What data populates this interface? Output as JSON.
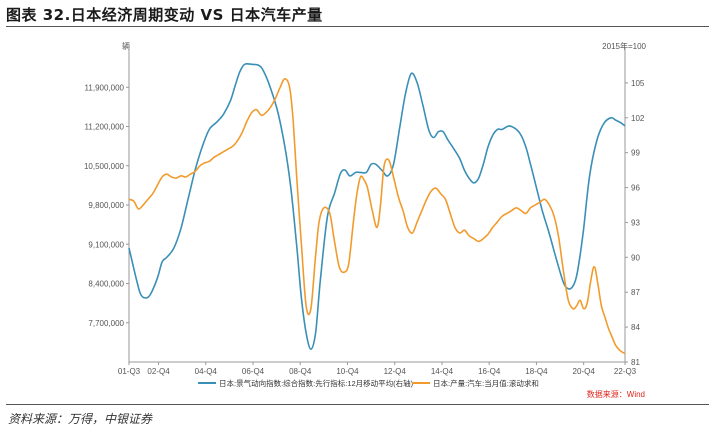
{
  "title": "图表 32.日本经济周期变动 VS 日本汽车产量",
  "source": "资料来源：万得，中银证券",
  "chart_data": {
    "type": "line",
    "left_unit": "辆",
    "right_unit": "2015年=100",
    "note": "数据来源：Wind",
    "left_axis": {
      "ticks": [
        "7,700,000",
        "8,400,000",
        "9,100,000",
        "9,800,000",
        "10,500,000",
        "11,200,000",
        "11,900,000"
      ],
      "ylim": [
        7000000,
        12600000
      ]
    },
    "right_axis": {
      "ticks": [
        "81",
        "84",
        "87",
        "90",
        "93",
        "96",
        "99",
        "102",
        "105"
      ],
      "ylim": [
        81,
        108
      ]
    },
    "x_ticks": [
      "01-Q3",
      "02-Q4",
      "04-Q4",
      "06-Q4",
      "08-Q4",
      "10-Q4",
      "12-Q4",
      "14-Q4",
      "16-Q4",
      "18-Q4",
      "20-Q4",
      "22-Q3"
    ],
    "x_tick_positions": [
      2001.5,
      2002.75,
      2004.75,
      2006.75,
      2008.75,
      2010.75,
      2012.75,
      2014.75,
      2016.75,
      2018.75,
      2020.75,
      2022.5
    ],
    "xlim": [
      2001.5,
      2022.5
    ],
    "series": [
      {
        "name": "日本:景气动向指数:综合指数:先行指标:12月移动平均(右轴)",
        "axis": "right",
        "color": "#3a8fb7",
        "x": [
          2001.5,
          2001.65,
          2001.85,
          2002.0,
          2002.2,
          2002.4,
          2002.7,
          2002.9,
          2003.1,
          2003.4,
          2003.7,
          2004.0,
          2004.3,
          2004.6,
          2004.9,
          2005.2,
          2005.5,
          2005.8,
          2006.0,
          2006.2,
          2006.4,
          2006.7,
          2007.0,
          2007.2,
          2007.5,
          2007.8,
          2008.1,
          2008.35,
          2008.6,
          2008.8,
          2009.0,
          2009.2,
          2009.4,
          2009.6,
          2009.9,
          2010.2,
          2010.45,
          2010.65,
          2010.85,
          2011.1,
          2011.3,
          2011.55,
          2011.75,
          2011.95,
          2012.2,
          2012.45,
          2012.7,
          2012.95,
          2013.2,
          2013.45,
          2013.7,
          2013.95,
          2014.2,
          2014.4,
          2014.6,
          2014.8,
          2015.0,
          2015.2,
          2015.5,
          2015.7,
          2015.9,
          2016.1,
          2016.3,
          2016.5,
          2016.7,
          2016.9,
          2017.1,
          2017.3,
          2017.6,
          2017.9,
          2018.1,
          2018.3,
          2018.5,
          2018.75,
          2019.0,
          2019.3,
          2019.6,
          2019.9,
          2020.1,
          2020.25,
          2020.4,
          2020.55,
          2020.75,
          2021.0,
          2021.3,
          2021.6,
          2021.9,
          2022.1,
          2022.3,
          2022.5
        ],
        "values": [
          90.8,
          89.5,
          87.8,
          86.8,
          86.5,
          86.8,
          88.2,
          89.6,
          90.0,
          90.8,
          92.5,
          95.0,
          97.5,
          99.5,
          101.0,
          101.6,
          102.3,
          103.5,
          104.8,
          106.0,
          106.6,
          106.6,
          106.5,
          106.0,
          104.5,
          102.5,
          99.5,
          96.0,
          91.0,
          86.5,
          83.5,
          82.1,
          83.5,
          88.0,
          93.5,
          95.5,
          97.2,
          97.5,
          97.0,
          97.3,
          97.3,
          97.3,
          98.0,
          98.0,
          97.5,
          97.0,
          98.0,
          101.0,
          104.0,
          105.8,
          105.0,
          103.0,
          100.9,
          100.3,
          100.8,
          100.8,
          100.1,
          99.5,
          98.5,
          97.5,
          96.8,
          96.4,
          96.8,
          98.0,
          99.5,
          100.5,
          101.0,
          101.0,
          101.3,
          101.0,
          100.5,
          99.5,
          98.0,
          96.0,
          94.0,
          92.0,
          89.8,
          87.8,
          87.3,
          87.4,
          88.0,
          89.5,
          92.5,
          97.0,
          100.0,
          101.5,
          102.0,
          101.8,
          101.6,
          101.3
        ]
      },
      {
        "name": "日本:产量:汽车:当月值:滚动求和",
        "axis": "left",
        "color": "#f29b2c",
        "x": [
          2001.5,
          2001.7,
          2001.9,
          2002.1,
          2002.3,
          2002.5,
          2002.7,
          2002.9,
          2003.1,
          2003.3,
          2003.5,
          2003.7,
          2003.9,
          2004.1,
          2004.3,
          2004.5,
          2004.7,
          2004.9,
          2005.1,
          2005.3,
          2005.5,
          2005.7,
          2005.9,
          2006.1,
          2006.3,
          2006.5,
          2006.7,
          2006.9,
          2007.1,
          2007.3,
          2007.5,
          2007.7,
          2007.9,
          2008.1,
          2008.3,
          2008.45,
          2008.6,
          2008.8,
          2009.0,
          2009.2,
          2009.4,
          2009.55,
          2009.75,
          2010.0,
          2010.2,
          2010.4,
          2010.6,
          2010.8,
          2011.0,
          2011.15,
          2011.3,
          2011.45,
          2011.6,
          2011.8,
          2012.0,
          2012.15,
          2012.3,
          2012.5,
          2012.7,
          2012.9,
          2013.1,
          2013.3,
          2013.5,
          2013.7,
          2013.9,
          2014.1,
          2014.3,
          2014.5,
          2014.7,
          2014.9,
          2015.1,
          2015.3,
          2015.5,
          2015.7,
          2015.9,
          2016.1,
          2016.3,
          2016.5,
          2016.7,
          2016.9,
          2017.1,
          2017.3,
          2017.5,
          2017.7,
          2017.9,
          2018.1,
          2018.3,
          2018.5,
          2018.7,
          2018.9,
          2019.1,
          2019.3,
          2019.5,
          2019.7,
          2019.9,
          2020.1,
          2020.3,
          2020.45,
          2020.6,
          2020.75,
          2020.9,
          2021.05,
          2021.2,
          2021.35,
          2021.5,
          2021.65,
          2021.8,
          2021.95,
          2022.1,
          2022.3,
          2022.5
        ],
        "values": [
          9900000,
          9870000,
          9730000,
          9800000,
          9900000,
          10000000,
          10150000,
          10300000,
          10350000,
          10300000,
          10280000,
          10320000,
          10300000,
          10350000,
          10400000,
          10500000,
          10550000,
          10580000,
          10650000,
          10700000,
          10750000,
          10800000,
          10850000,
          10950000,
          11100000,
          11300000,
          11450000,
          11500000,
          11400000,
          11450000,
          11550000,
          11700000,
          11900000,
          12050000,
          11900000,
          11300000,
          10300000,
          9100000,
          8000000,
          7950000,
          8900000,
          9500000,
          9750000,
          9650000,
          9150000,
          8700000,
          8600000,
          8750000,
          9500000,
          10000000,
          10300000,
          10250000,
          10100000,
          9700000,
          9400000,
          9800000,
          10500000,
          10600000,
          10300000,
          9950000,
          9700000,
          9400000,
          9300000,
          9500000,
          9700000,
          9900000,
          10050000,
          10100000,
          10000000,
          9900000,
          9650000,
          9400000,
          9300000,
          9350000,
          9250000,
          9200000,
          9150000,
          9200000,
          9280000,
          9400000,
          9500000,
          9600000,
          9650000,
          9700000,
          9750000,
          9700000,
          9650000,
          9750000,
          9800000,
          9850000,
          9900000,
          9800000,
          9600000,
          9200000,
          8600000,
          8100000,
          7950000,
          8000000,
          8100000,
          7950000,
          8050000,
          8450000,
          8700000,
          8400000,
          8000000,
          7800000,
          7600000,
          7450000,
          7300000,
          7200000,
          7150000
        ]
      }
    ]
  }
}
